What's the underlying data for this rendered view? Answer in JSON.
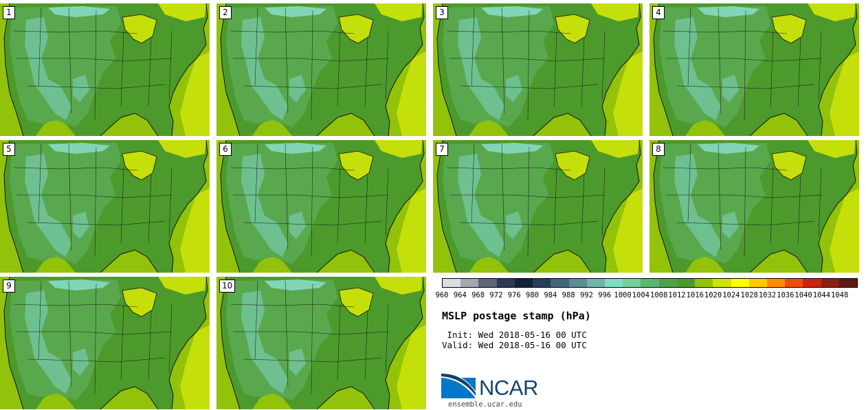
{
  "panels": [
    {
      "id": "1"
    },
    {
      "id": "2"
    },
    {
      "id": "3"
    },
    {
      "id": "4"
    },
    {
      "id": "5"
    },
    {
      "id": "6"
    },
    {
      "id": "7"
    },
    {
      "id": "8"
    },
    {
      "id": "9"
    },
    {
      "id": "10"
    }
  ],
  "colorbar": {
    "colors": [
      "#dcdde3",
      "#a3a6b3",
      "#5f6478",
      "#2d3856",
      "#13213a",
      "#253f59",
      "#41667b",
      "#5c8c94",
      "#70b4ab",
      "#7fdcc2",
      "#74cf9a",
      "#5fb76e",
      "#4ea34a",
      "#4c9a2c",
      "#93c20b",
      "#d1e208",
      "#ffff00",
      "#ffca00",
      "#ff8c00",
      "#ef4d0a",
      "#c7270f",
      "#8e2014",
      "#5c1a10"
    ],
    "ticks": [
      "960",
      "964",
      "968",
      "972",
      "976",
      "980",
      "984",
      "988",
      "992",
      "996",
      "1000",
      "1004",
      "1008",
      "1012",
      "1016",
      "1020",
      "1024",
      "1028",
      "1032",
      "1036",
      "1040",
      "1044",
      "1048"
    ]
  },
  "title": "MSLP postage stamp (hPa)",
  "init": " Init: Wed 2018-05-16 00 UTC",
  "valid": "Valid: Wed 2018-05-16 00 UTC",
  "logo": {
    "text": "NCAR",
    "site": "ensemble.ucar.edu",
    "brand_color": "#14436b",
    "accent_color": "#0077c8"
  },
  "map_colors": {
    "land_low": "#4c9a2c",
    "land_mid": "#5aa84e",
    "land_high": "#6fc090",
    "peak": "#82d6b8",
    "ocean": "#93c20b",
    "lakes_high": "#c4df0a",
    "border": "#111111"
  }
}
